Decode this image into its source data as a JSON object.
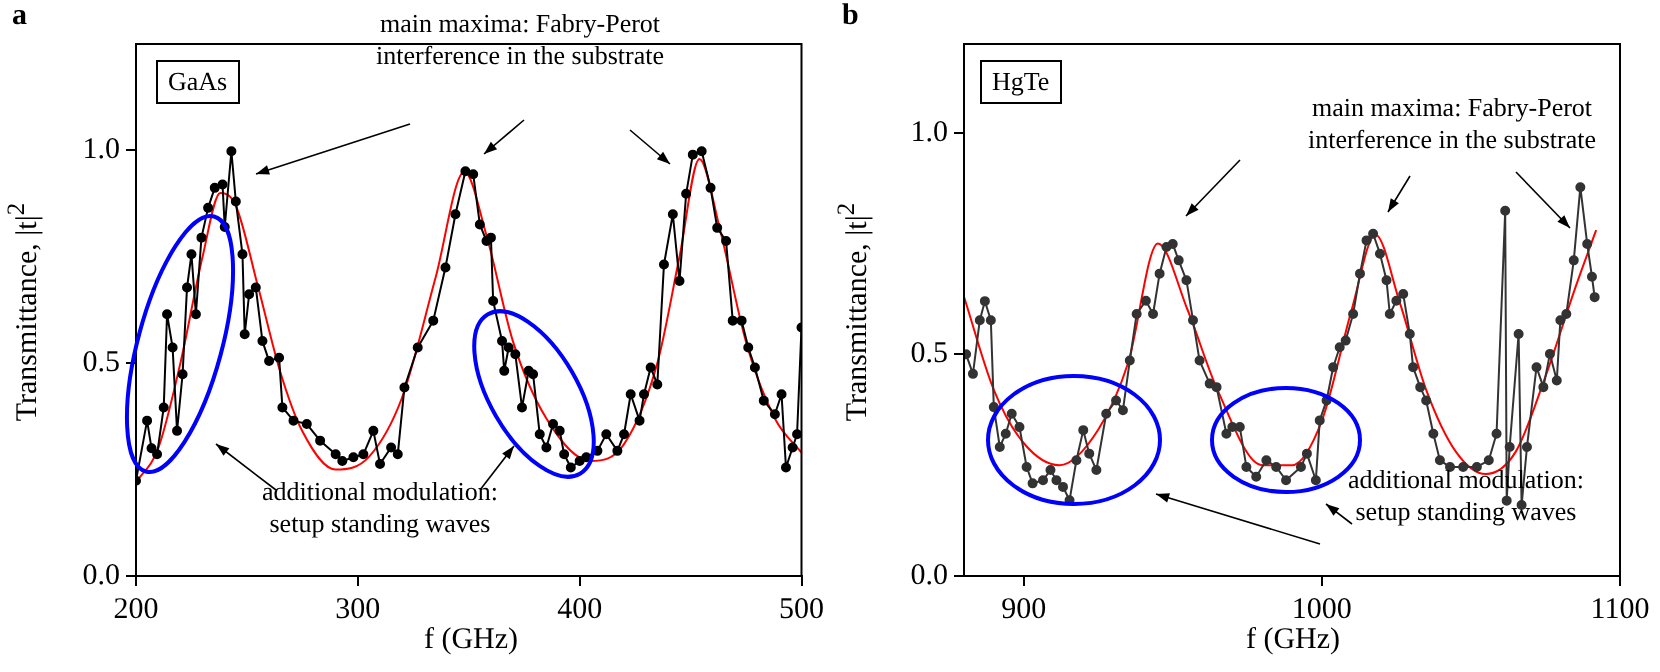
{
  "chart_data": [
    {
      "type": "line",
      "title": "a",
      "xlabel": "f (GHz)",
      "ylabel": "Transmittance, |t|$^{2}$",
      "xlim": [
        200,
        500
      ],
      "xticks": [
        200,
        300,
        400,
        500
      ],
      "ylim": [
        0,
        1.25
      ],
      "yticks": [
        {
          "value": 0,
          "label": "0.0"
        },
        {
          "value": 0.5,
          "label": "0.5"
        },
        {
          "value": 1,
          "label": "1.0"
        }
      ],
      "annotations": [
        "GaAs",
        "main maxima: Fabry-Perot\ninterference in the substrate",
        "additional modulation:\nsetup standing waves"
      ],
      "series": [
        {
          "color": "#000000",
          "marker": "circle",
          "x": [
            200,
            205,
            207,
            209.5,
            212.5,
            214,
            216.5,
            218.5,
            221,
            223,
            225,
            227,
            229.5,
            232.5,
            235.5,
            239,
            240,
            243,
            245,
            248,
            249,
            251,
            254,
            257,
            260,
            264.5,
            266,
            271,
            277,
            283,
            290,
            293,
            298,
            302.5,
            307,
            310,
            315,
            318,
            321,
            327,
            334,
            339.5,
            344,
            348.5,
            352,
            355,
            358,
            360,
            361,
            365,
            366,
            368,
            371,
            374,
            377,
            379,
            382,
            385,
            388,
            391,
            393,
            396,
            400,
            403,
            408,
            412,
            417,
            420,
            423,
            427,
            429,
            432,
            435,
            438,
            442,
            445,
            448,
            451,
            455,
            459,
            462,
            466,
            469,
            473,
            476,
            479,
            483,
            488,
            491,
            493,
            496,
            498,
            500
          ],
          "values": [
            0.224,
            0.365,
            0.3,
            0.286,
            0.396,
            0.615,
            0.537,
            0.341,
            0.474,
            0.678,
            0.756,
            0.615,
            0.795,
            0.865,
            0.912,
            0.92,
            0.82,
            0.998,
            0.88,
            0.756,
            0.568,
            0.662,
            0.678,
            0.552,
            0.505,
            0.513,
            0.396,
            0.365,
            0.357,
            0.318,
            0.286,
            0.27,
            0.279,
            0.286,
            0.341,
            0.263,
            0.302,
            0.286,
            0.443,
            0.537,
            0.6,
            0.725,
            0.85,
            0.951,
            0.944,
            0.826,
            0.787,
            0.795,
            0.646,
            0.552,
            0.482,
            0.537,
            0.521,
            0.396,
            0.482,
            0.474,
            0.333,
            0.302,
            0.357,
            0.341,
            0.286,
            0.255,
            0.27,
            0.279,
            0.294,
            0.333,
            0.294,
            0.333,
            0.427,
            0.365,
            0.427,
            0.49,
            0.45,
            0.732,
            0.85,
            0.693,
            0.898,
            0.99,
            0.998,
            0.912,
            0.818,
            0.787,
            0.6,
            0.6,
            0.537,
            0.49,
            0.412,
            0.38,
            0.427,
            0.255,
            0.302,
            0.333,
            0.584
          ]
        },
        {
          "color": "#ff0000",
          "marker": "none",
          "x": [
            200,
            210,
            220,
            230,
            238,
            245,
            255,
            265,
            275,
            290,
            305,
            320,
            335,
            348,
            358,
            370,
            385,
            405,
            420,
            435,
            445,
            454,
            463,
            475,
            488,
            500
          ],
          "values": [
            0.22,
            0.3,
            0.5,
            0.75,
            0.9,
            0.87,
            0.68,
            0.48,
            0.34,
            0.25,
            0.28,
            0.42,
            0.7,
            0.95,
            0.8,
            0.55,
            0.37,
            0.27,
            0.31,
            0.5,
            0.75,
            0.98,
            0.82,
            0.55,
            0.37,
            0.29
          ]
        }
      ]
    },
    {
      "type": "line",
      "title": "b",
      "xlabel": "f (GHz)",
      "ylabel": "Transmittance, |t|$^{2}$",
      "xlim": [
        880,
        1100
      ],
      "xticks": [
        900,
        1000,
        1100
      ],
      "ylim": [
        0,
        1.2
      ],
      "yticks": [
        {
          "value": 0,
          "label": "0.0"
        },
        {
          "value": 0.5,
          "label": "0.5"
        },
        {
          "value": 1,
          "label": "1.0"
        }
      ],
      "annotations": [
        "HgTe",
        "main maxima: Fabry-Perot\ninterference in the substrate",
        "additional modulation:\nsetup standing waves"
      ],
      "series": [
        {
          "color": "#333333",
          "marker": "circle",
          "x": [
            880.7,
            883,
            885.3,
            887,
            889,
            890,
            892,
            894,
            896,
            898.6,
            901,
            903,
            906.5,
            909,
            911,
            913.2,
            915.4,
            917.7,
            920,
            922,
            924.4,
            927.7,
            931,
            933.3,
            935.6,
            937.9,
            941,
            943.4,
            945.6,
            947.9,
            950,
            952,
            954.6,
            956.8,
            959,
            962.4,
            964.7,
            968,
            970,
            972.5,
            974.7,
            978,
            981.4,
            984.7,
            988,
            993,
            995,
            998,
            999.3,
            1001.6,
            1003.8,
            1006,
            1008,
            1010.5,
            1012.8,
            1015,
            1017.2,
            1019.5,
            1021.7,
            1022.8,
            1025,
            1027.3,
            1029.5,
            1030.6,
            1033,
            1035,
            1037.4,
            1039.6,
            1043,
            1047.4,
            1052,
            1056,
            1058.6,
            1061.5,
            1062,
            1063,
            1066,
            1067,
            1068.8,
            1072,
            1074.3,
            1076.5,
            1078.8,
            1080,
            1082,
            1084.5,
            1086.7,
            1089,
            1090.6,
            1091.5
          ],
          "values": [
            0.5,
            0.456,
            0.577,
            0.62,
            0.577,
            0.381,
            0.291,
            0.321,
            0.366,
            0.336,
            0.246,
            0.209,
            0.216,
            0.239,
            0.216,
            0.201,
            0.171,
            0.261,
            0.329,
            0.276,
            0.239,
            0.366,
            0.396,
            0.374,
            0.486,
            0.591,
            0.621,
            0.591,
            0.682,
            0.742,
            0.749,
            0.712,
            0.667,
            0.577,
            0.486,
            0.434,
            0.426,
            0.321,
            0.336,
            0.336,
            0.246,
            0.224,
            0.261,
            0.246,
            0.216,
            0.246,
            0.276,
            0.216,
            0.351,
            0.396,
            0.471,
            0.516,
            0.531,
            0.591,
            0.682,
            0.757,
            0.772,
            0.727,
            0.667,
            0.591,
            0.621,
            0.636,
            0.546,
            0.471,
            0.426,
            0.396,
            0.321,
            0.261,
            0.246,
            0.246,
            0.246,
            0.261,
            0.321,
            0.824,
            0.17,
            0.291,
            0.546,
            0.16,
            0.291,
            0.471,
            0.426,
            0.501,
            0.441,
            0.577,
            0.591,
            0.712,
            0.877,
            0.749,
            0.675,
            0.629
          ]
        },
        {
          "color": "#ff0000",
          "marker": "none",
          "x": [
            880,
            890,
            900,
            912,
            925,
            935,
            945,
            955,
            965,
            980,
            990,
            1000,
            1010,
            1018,
            1026,
            1035,
            1045,
            1055,
            1065,
            1075,
            1085,
            1092
          ],
          "values": [
            0.63,
            0.42,
            0.3,
            0.25,
            0.33,
            0.48,
            0.75,
            0.6,
            0.42,
            0.25,
            0.25,
            0.35,
            0.6,
            0.77,
            0.62,
            0.42,
            0.28,
            0.23,
            0.28,
            0.45,
            0.65,
            0.78
          ]
        }
      ]
    }
  ]
}
